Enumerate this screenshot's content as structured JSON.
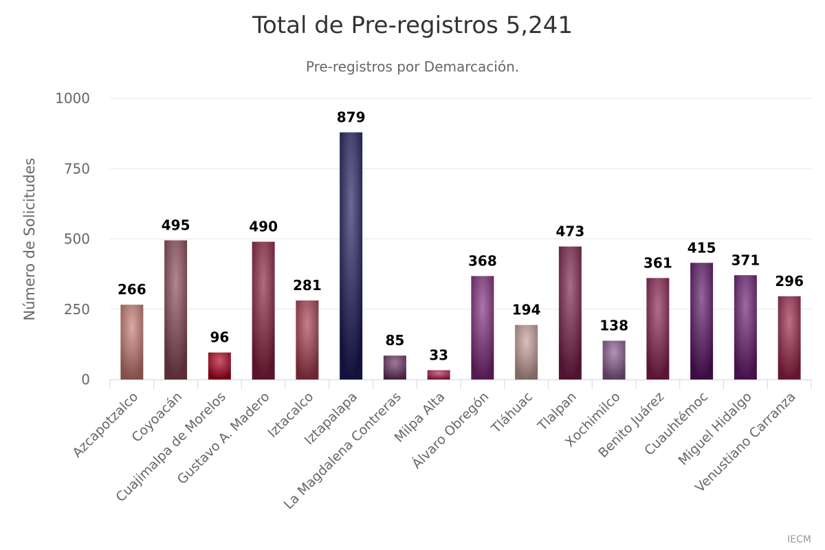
{
  "chart_data": {
    "type": "bar",
    "title": "Total de Pre-registros 5,241",
    "subtitle": "Pre-registros por Demarcación.",
    "ylabel": "Número de Solicitudes",
    "xlabel": "",
    "ylim": [
      0,
      1000
    ],
    "yticks": [
      0,
      250,
      500,
      750,
      1000
    ],
    "grid": true,
    "legend": "none",
    "categories": [
      "Azcapotzalco",
      "Coyoacán",
      "Cuajimalpa de Morelos",
      "Gustavo A. Madero",
      "Iztacalco",
      "Iztapalapa",
      "La Magdalena Contreras",
      "Milpa Alta",
      "Álvaro Obregón",
      "Tláhuac",
      "Tlalpan",
      "Xochimilco",
      "Benito Juárez",
      "Cuauhtémoc",
      "Miguel Hidalgo",
      "Venustiano Carranza"
    ],
    "values": [
      266,
      495,
      96,
      490,
      281,
      879,
      85,
      33,
      368,
      194,
      473,
      138,
      361,
      415,
      371,
      296
    ],
    "colors": [
      "#c87a72",
      "#8a4658",
      "#b0001e",
      "#8a1e40",
      "#a83c4e",
      "#1e1a5e",
      "#6a3462",
      "#b0204e",
      "#802a7a",
      "#c8a09a",
      "#7a1e48",
      "#8a5a90",
      "#8a1e50",
      "#5a1466",
      "#6a1a72",
      "#9a2448"
    ],
    "credit": "IECM"
  }
}
